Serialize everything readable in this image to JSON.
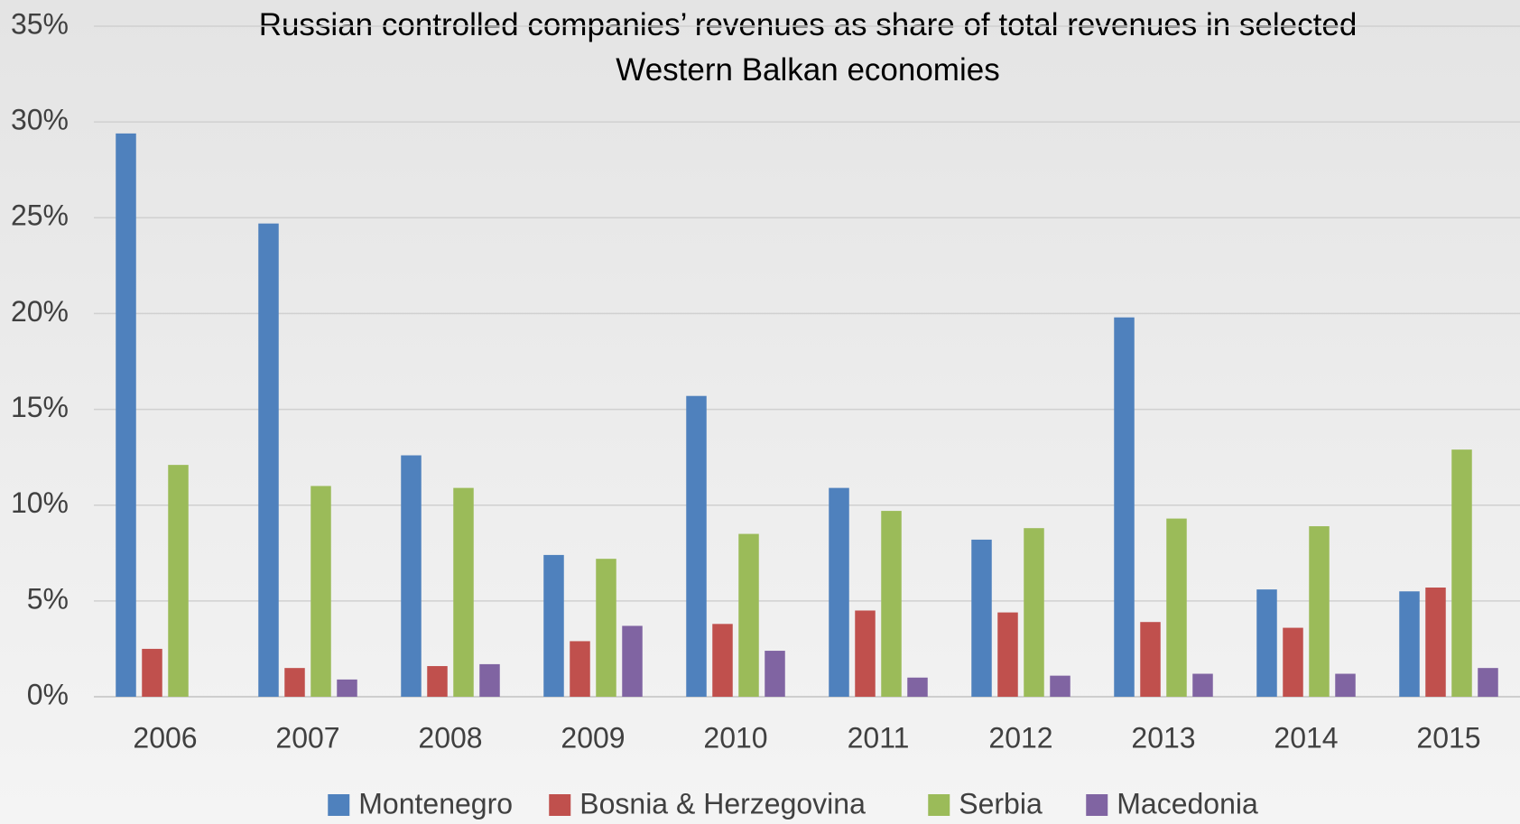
{
  "chart_data": {
    "type": "bar",
    "title": "Russian controlled companies’ revenues as share of total revenues in selected Western Balkan economies",
    "categories": [
      "2006",
      "2007",
      "2008",
      "2009",
      "2010",
      "2011",
      "2012",
      "2013",
      "2014",
      "2015"
    ],
    "series": [
      {
        "name": "Montenegro",
        "color": "#4f81bd",
        "values": [
          29.4,
          24.7,
          12.6,
          7.4,
          15.7,
          10.9,
          8.2,
          19.8,
          5.6,
          5.5
        ]
      },
      {
        "name": "Bosnia & Herzegovina",
        "color": "#c0504d",
        "values": [
          2.5,
          1.5,
          1.6,
          2.9,
          3.8,
          4.5,
          4.4,
          3.9,
          3.6,
          5.7
        ]
      },
      {
        "name": "Serbia",
        "color": "#9bbb59",
        "values": [
          12.1,
          11.0,
          10.9,
          7.2,
          8.5,
          9.7,
          8.8,
          9.3,
          8.9,
          12.9
        ]
      },
      {
        "name": "Macedonia",
        "color": "#8064a2",
        "values": [
          null,
          0.9,
          1.7,
          3.7,
          2.4,
          1.0,
          1.1,
          1.2,
          1.2,
          1.5
        ]
      }
    ],
    "ylim": [
      0,
      35
    ],
    "yticks": [
      {
        "value": 0,
        "label": "0%"
      },
      {
        "value": 5,
        "label": "5%"
      },
      {
        "value": 10,
        "label": "10%"
      },
      {
        "value": 15,
        "label": "15%"
      },
      {
        "value": 20,
        "label": "20%"
      },
      {
        "value": 25,
        "label": "25%"
      },
      {
        "value": 30,
        "label": "30%"
      },
      {
        "value": 35,
        "label": "35%"
      }
    ],
    "grid": true,
    "legend": "bottom"
  }
}
